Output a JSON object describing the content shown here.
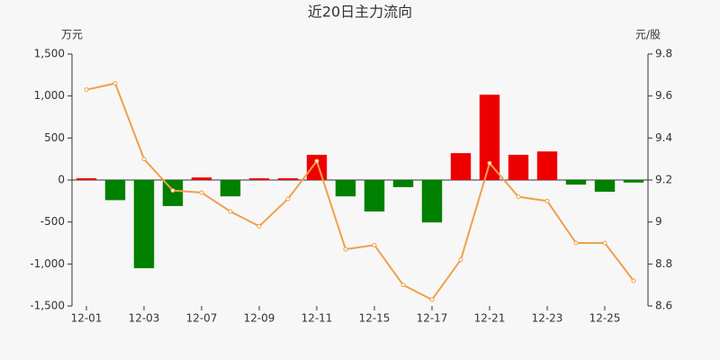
{
  "chart_data": {
    "type": "bar_line",
    "title": "近20日主力流向",
    "y_label": "万元",
    "y2_label": "元/股",
    "categories": [
      "12-01",
      null,
      "12-03",
      null,
      "12-07",
      null,
      "12-09",
      null,
      "12-11",
      null,
      "12-15",
      null,
      "12-17",
      null,
      "12-21",
      null,
      "12-23",
      null,
      "12-25",
      null
    ],
    "series": [
      {
        "type": "bar",
        "positive_color": "#ee0000",
        "negative_color": "#008000",
        "values": [
          20,
          -240,
          -1050,
          -310,
          30,
          -195,
          20,
          20,
          300,
          -195,
          -375,
          -85,
          -505,
          320,
          1015,
          300,
          340,
          -55,
          -140,
          -30
        ]
      },
      {
        "type": "line",
        "axis": "y2",
        "color": "#f0a04b",
        "values": [
          9.63,
          9.66,
          9.3,
          9.15,
          9.14,
          9.05,
          8.98,
          9.11,
          9.29,
          8.87,
          8.89,
          8.7,
          8.63,
          8.82,
          9.28,
          9.12,
          9.1,
          8.9,
          8.9,
          8.72
        ]
      }
    ],
    "ylim": [
      -1500,
      1500
    ],
    "yticks": [
      {
        "value": -1500,
        "label": "-1,500"
      },
      {
        "value": -1000,
        "label": "-1,000"
      },
      -500,
      0,
      500,
      {
        "value": 1000,
        "label": "1,000"
      },
      {
        "value": 1500,
        "label": "1,500"
      }
    ],
    "y2lim": [
      8.6,
      9.8
    ],
    "y2ticks": [
      8.6,
      8.8,
      9,
      9.2,
      9.4,
      9.6,
      9.8
    ]
  }
}
